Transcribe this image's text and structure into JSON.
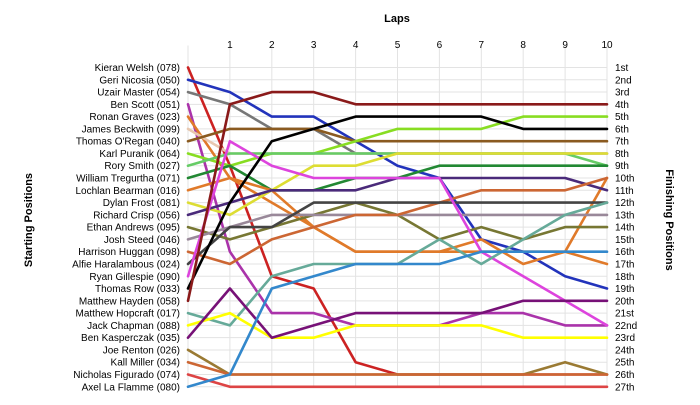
{
  "chart_data": {
    "type": "line",
    "title": "",
    "xlabel": "Laps",
    "ylabel_left": "Starting Positions",
    "ylabel_right": "Finishing Positions",
    "laps": [
      1,
      2,
      3,
      4,
      5,
      6,
      7,
      8,
      9,
      10
    ],
    "finishing_labels": [
      "1st",
      "2nd",
      "3rd",
      "4th",
      "5th",
      "6th",
      "7th",
      "8th",
      "9th",
      "10th",
      "11th",
      "12th",
      "13th",
      "14th",
      "15th",
      "16th",
      "17th",
      "18th",
      "19th",
      "20th",
      "21st",
      "22nd",
      "23rd",
      "24th",
      "25th",
      "26th",
      "27th"
    ],
    "grid": true,
    "series": [
      {
        "name": "Kieran Welsh (078)",
        "color": "#cc2222",
        "positions": [
          1,
          9,
          18,
          19,
          25,
          26,
          26,
          26,
          26,
          26,
          26
        ]
      },
      {
        "name": "Geri Nicosia (050)",
        "color": "#2233bb",
        "positions": [
          2,
          3,
          5,
          5,
          7,
          9,
          10,
          15,
          16,
          18,
          19
        ]
      },
      {
        "name": "Uzair Master (054)",
        "color": "#777777",
        "positions": [
          3,
          4,
          6,
          6,
          8,
          8,
          8,
          8,
          8,
          8,
          8
        ]
      },
      {
        "name": "Ben Scott (051)",
        "color": "#aa33aa",
        "positions": [
          4,
          16,
          21,
          21,
          22,
          22,
          22,
          21,
          21,
          22,
          22
        ]
      },
      {
        "name": "Ronan Graves (023)",
        "color": "#e07a2a",
        "positions": [
          5,
          10,
          12,
          14,
          16,
          16,
          16,
          16,
          16,
          16,
          10
        ]
      },
      {
        "name": "James Beckwith (099)",
        "color": "#e8c8b0",
        "positions": [
          6,
          8,
          8,
          8,
          8,
          8,
          8,
          8,
          8,
          8,
          8
        ]
      },
      {
        "name": "Thomas O'Regan (040)",
        "color": "#8a5a20",
        "positions": [
          7,
          6,
          6,
          6,
          7,
          7,
          7,
          7,
          7,
          7,
          7
        ]
      },
      {
        "name": "Karl Puranik (064)",
        "color": "#88dd22",
        "positions": [
          8,
          9,
          8,
          8,
          7,
          6,
          6,
          6,
          5,
          5,
          5
        ]
      },
      {
        "name": "Rory Smith (027)",
        "color": "#66cc66",
        "positions": [
          9,
          8,
          8,
          8,
          8,
          8,
          8,
          8,
          8,
          8,
          9
        ]
      },
      {
        "name": "William Tregurtha (071)",
        "color": "#228833",
        "positions": [
          10,
          9,
          11,
          11,
          10,
          10,
          9,
          9,
          9,
          9,
          9
        ]
      },
      {
        "name": "Lochlan Bearman (016)",
        "color": "#e07a2a",
        "positions": [
          11,
          10,
          11,
          14,
          16,
          16,
          16,
          15,
          17,
          16,
          17
        ]
      },
      {
        "name": "Dylan Frost (081)",
        "color": "#dddd33",
        "positions": [
          12,
          13,
          11,
          9,
          9,
          8,
          8,
          8,
          8,
          8,
          8
        ]
      },
      {
        "name": "Richard Crisp (056)",
        "color": "#4a2a7a",
        "positions": [
          13,
          12,
          11,
          11,
          11,
          10,
          10,
          10,
          10,
          10,
          11
        ]
      },
      {
        "name": "Ethan Andrews (095)",
        "color": "#777733",
        "positions": [
          14,
          15,
          14,
          13,
          12,
          13,
          15,
          14,
          15,
          14,
          14
        ]
      },
      {
        "name": "Josh Steed (046)",
        "color": "#998899",
        "positions": [
          15,
          14,
          13,
          13,
          13,
          13,
          13,
          13,
          13,
          13,
          13
        ]
      },
      {
        "name": "Harrison Huggan (098)",
        "color": "#cc6633",
        "positions": [
          16,
          17,
          15,
          14,
          13,
          13,
          12,
          11,
          11,
          11,
          10
        ]
      },
      {
        "name": "Alfie Haralambous (024)",
        "color": "#444444",
        "positions": [
          17,
          14,
          14,
          12,
          12,
          12,
          12,
          12,
          12,
          12,
          12
        ]
      },
      {
        "name": "Ryan Gillespie (090)",
        "color": "#dd44dd",
        "positions": [
          18,
          7,
          9,
          10,
          10,
          10,
          10,
          16,
          18,
          20,
          22
        ]
      },
      {
        "name": "Thomas Row (033)",
        "color": "#000000",
        "positions": [
          19,
          12,
          7,
          6,
          5,
          5,
          5,
          5,
          6,
          6,
          6
        ]
      },
      {
        "name": "Matthew Hayden (058)",
        "color": "#8a1a1a",
        "positions": [
          20,
          4,
          3,
          3,
          4,
          4,
          4,
          4,
          4,
          4,
          4
        ]
      },
      {
        "name": "Matthew Hopcraft (017)",
        "color": "#66aa99",
        "positions": [
          21,
          22,
          18,
          17,
          17,
          17,
          15,
          17,
          15,
          13,
          12
        ]
      },
      {
        "name": "Jack Chapman (088)",
        "color": "#ffff00",
        "positions": [
          22,
          21,
          23,
          23,
          22,
          22,
          22,
          22,
          23,
          23,
          23
        ]
      },
      {
        "name": "Ben Kasperczak (035)",
        "color": "#771177",
        "positions": [
          23,
          19,
          23,
          22,
          21,
          21,
          21,
          21,
          20,
          20,
          20
        ]
      },
      {
        "name": "Joe Renton (026)",
        "color": "#9a7a33",
        "positions": [
          24,
          26,
          26,
          26,
          26,
          26,
          26,
          26,
          26,
          25,
          26
        ]
      },
      {
        "name": "Kall Miller (034)",
        "color": "#cc6633",
        "positions": [
          25,
          26,
          26,
          26,
          26,
          26,
          26,
          26,
          26,
          26,
          26
        ]
      },
      {
        "name": "Nicholas Figurado (074)",
        "color": "#dd4444",
        "positions": [
          26,
          27,
          27,
          27,
          27,
          27,
          27,
          27,
          27,
          27,
          27
        ]
      },
      {
        "name": "Axel La Flamme (080)",
        "color": "#3388cc",
        "positions": [
          27,
          26,
          19,
          18,
          17,
          17,
          17,
          16,
          16,
          16,
          16
        ]
      }
    ]
  }
}
